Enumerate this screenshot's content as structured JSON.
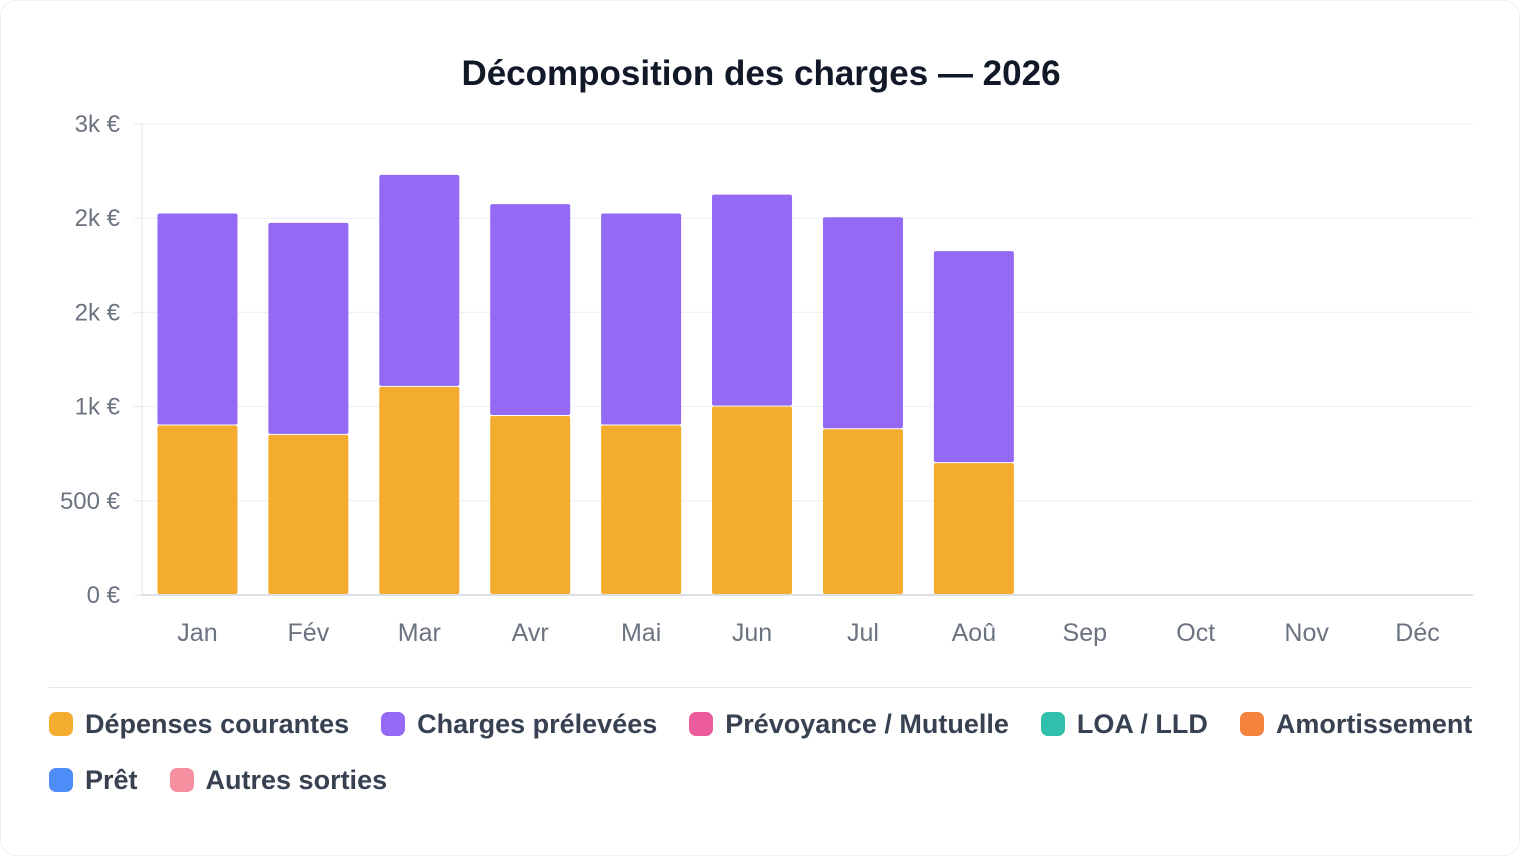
{
  "chart_data": {
    "type": "bar",
    "stacked": true,
    "title": "Décomposition des charges — 2026",
    "categories": [
      "Jan",
      "Fév",
      "Mar",
      "Avr",
      "Mai",
      "Jun",
      "Jul",
      "Aoû",
      "Sep",
      "Oct",
      "Nov",
      "Déc"
    ],
    "y_ticks": [
      "0 €",
      "500 €",
      "1k €",
      "2k €",
      "2k €",
      "3k €"
    ],
    "y_tick_values": [
      0,
      500,
      1000,
      1500,
      2000,
      2500
    ],
    "ylim": [
      0,
      2500
    ],
    "grid": true,
    "legend_position": "bottom",
    "series": [
      {
        "name": "Dépenses courantes",
        "color": "#f4ac2e",
        "values": [
          900,
          850,
          1105,
          950,
          900,
          1000,
          880,
          700,
          null,
          null,
          null,
          null
        ]
      },
      {
        "name": "Charges prélevées",
        "color": "#9469f3",
        "values": [
          1125,
          1125,
          1125,
          1125,
          1125,
          1125,
          1125,
          1125,
          null,
          null,
          null,
          null
        ]
      },
      {
        "name": "Prévoyance / Mutuelle",
        "color": "#ec5b9c",
        "values": [
          null,
          null,
          null,
          null,
          null,
          null,
          null,
          null,
          null,
          null,
          null,
          null
        ]
      },
      {
        "name": "LOA / LLD",
        "color": "#2fbfaa",
        "values": [
          null,
          null,
          null,
          null,
          null,
          null,
          null,
          null,
          null,
          null,
          null,
          null
        ]
      },
      {
        "name": "Amortissement",
        "color": "#f5823a",
        "values": [
          null,
          null,
          null,
          null,
          null,
          null,
          null,
          null,
          null,
          null,
          null,
          null
        ]
      },
      {
        "name": "Prêt",
        "color": "#4e8cf7",
        "values": [
          null,
          null,
          null,
          null,
          null,
          null,
          null,
          null,
          null,
          null,
          null,
          null
        ]
      },
      {
        "name": "Autres sorties",
        "color": "#f78fa0",
        "values": [
          null,
          null,
          null,
          null,
          null,
          null,
          null,
          null,
          null,
          null,
          null,
          null
        ]
      }
    ]
  }
}
